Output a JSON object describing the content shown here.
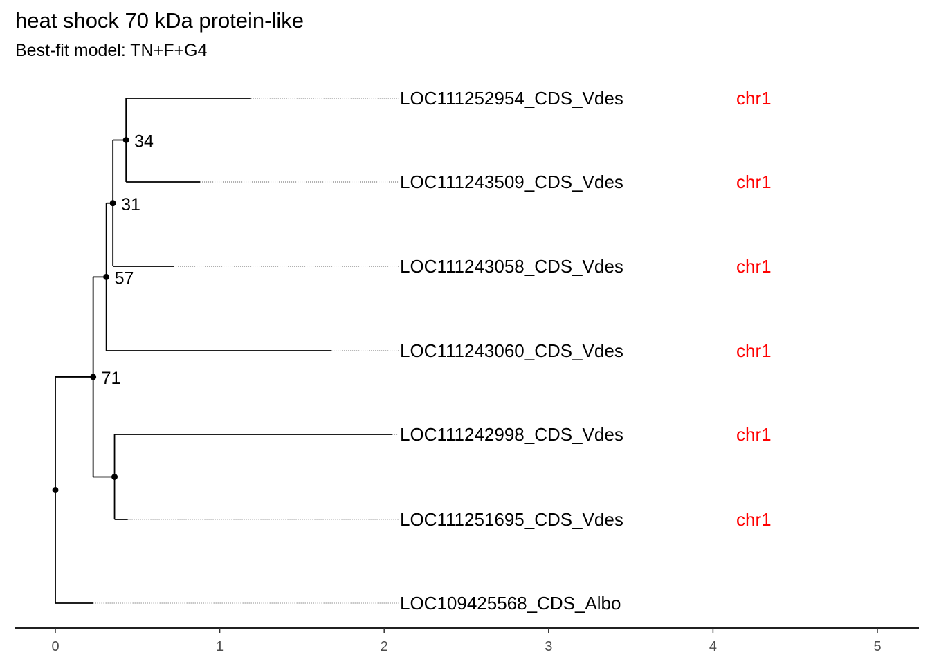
{
  "title": "heat shock 70 kDa protein-like",
  "subtitle": "Best-fit model: TN+F+G4",
  "colors": {
    "branch": "#000000",
    "chromosome_label": "#ff0000",
    "axis_text": "#4d4d4d"
  },
  "chart_data": {
    "type": "phylogenetic-tree",
    "x_axis": {
      "ticks": [
        "0",
        "1",
        "2",
        "3",
        "4",
        "5"
      ],
      "xlim": [
        -0.25,
        5.25
      ]
    },
    "tips": [
      {
        "name": "LOC111252954_CDS_Vdes",
        "chromosome": "chr1",
        "depth": 1.19
      },
      {
        "name": "LOC111243509_CDS_Vdes",
        "chromosome": "chr1",
        "depth": 0.88
      },
      {
        "name": "LOC111243058_CDS_Vdes",
        "chromosome": "chr1",
        "depth": 0.72
      },
      {
        "name": "LOC111243060_CDS_Vdes",
        "chromosome": "chr1",
        "depth": 1.68
      },
      {
        "name": "LOC111242998_CDS_Vdes",
        "chromosome": "chr1",
        "depth": 2.05
      },
      {
        "name": "LOC111251695_CDS_Vdes",
        "chromosome": "chr1",
        "depth": 0.44
      },
      {
        "name": "LOC109425568_CDS_Albo",
        "chromosome": "",
        "depth": 0.23
      }
    ],
    "internal_nodes": [
      {
        "id": "n34",
        "bootstrap": "34",
        "depth": 0.43
      },
      {
        "id": "n31",
        "bootstrap": "31",
        "depth": 0.35
      },
      {
        "id": "n57",
        "bootstrap": "57",
        "depth": 0.31
      },
      {
        "id": "n71",
        "bootstrap": "71",
        "depth": 0.23
      },
      {
        "id": "nB",
        "bootstrap": "",
        "depth": 0.36
      },
      {
        "id": "root",
        "bootstrap": "",
        "depth": 0.0
      }
    ]
  }
}
